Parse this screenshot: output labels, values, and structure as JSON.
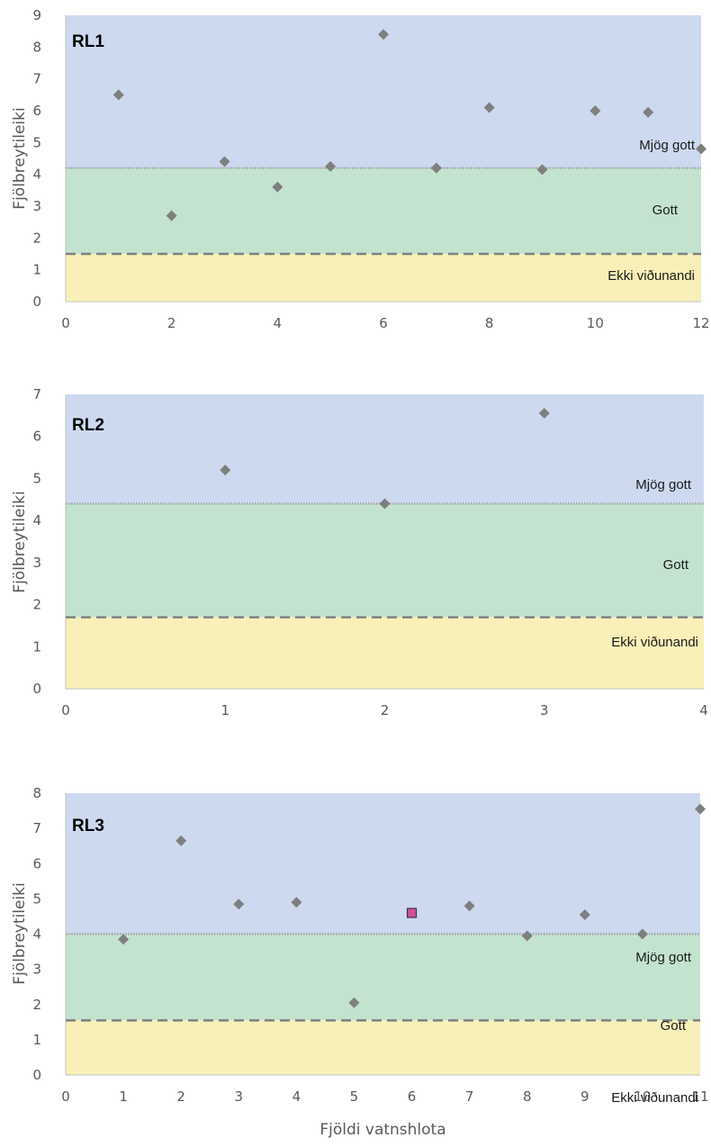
{
  "colors": {
    "band_top": "#ccd9ef",
    "band_mid": "#c3e3cf",
    "band_low": "#f8f0b8",
    "marker": "#7f7f7f",
    "marker_special": "#d2509a",
    "axis": "#bfbfbf",
    "boundary": "#808080"
  },
  "chart_data": [
    {
      "type": "scatter",
      "panel_label": "RL1",
      "ylabel": "Fjölbreytileiki",
      "xlabel": "",
      "xlim": [
        0,
        12
      ],
      "ylim": [
        0,
        9
      ],
      "x_ticks": [
        0,
        2,
        4,
        6,
        8,
        10,
        12
      ],
      "y_ticks": [
        0,
        1,
        2,
        3,
        4,
        5,
        6,
        7,
        8,
        9
      ],
      "bands": [
        {
          "label": "Mjög gott",
          "from": 4.2,
          "to": 9
        },
        {
          "label": "Gott",
          "from": 1.5,
          "to": 4.2
        },
        {
          "label": "Ekki viðunandi",
          "from": 0,
          "to": 1.5
        }
      ],
      "thresholds": [
        {
          "value": 4.2,
          "style": "dotted"
        },
        {
          "value": 1.5,
          "style": "dashed"
        }
      ],
      "series": [
        {
          "marker": "diamond",
          "points": [
            [
              1,
              6.5
            ],
            [
              2,
              2.7
            ],
            [
              3,
              4.4
            ],
            [
              4,
              3.6
            ],
            [
              5,
              4.25
            ],
            [
              6,
              8.4
            ],
            [
              7,
              4.2
            ],
            [
              8,
              6.1
            ],
            [
              9,
              4.15
            ],
            [
              10,
              6.0
            ],
            [
              11,
              5.95
            ],
            [
              12,
              4.8
            ]
          ]
        }
      ]
    },
    {
      "type": "scatter",
      "panel_label": "RL2",
      "ylabel": "Fjölbreytileiki",
      "xlabel": "",
      "xlim": [
        0,
        4
      ],
      "ylim": [
        0,
        7
      ],
      "x_ticks": [
        0,
        1,
        2,
        3,
        4
      ],
      "y_ticks": [
        0,
        1,
        2,
        3,
        4,
        5,
        6,
        7
      ],
      "bands": [
        {
          "label": "Mjög gott",
          "from": 4.4,
          "to": 7
        },
        {
          "label": "Gott",
          "from": 1.7,
          "to": 4.4
        },
        {
          "label": "Ekki viðunandi",
          "from": 0,
          "to": 1.7
        }
      ],
      "thresholds": [
        {
          "value": 4.4,
          "style": "dotted"
        },
        {
          "value": 1.7,
          "style": "dashed"
        }
      ],
      "series": [
        {
          "marker": "diamond",
          "points": [
            [
              1,
              5.2
            ],
            [
              2,
              4.4
            ],
            [
              3,
              6.55
            ]
          ]
        }
      ]
    },
    {
      "type": "scatter",
      "panel_label": "RL3",
      "ylabel": "Fjölbreytileiki",
      "xlabel": "Fjöldi vatnshlota",
      "xlim": [
        0,
        11
      ],
      "ylim": [
        0,
        8
      ],
      "x_ticks": [
        0,
        1,
        2,
        3,
        4,
        5,
        6,
        7,
        8,
        9,
        10,
        11
      ],
      "y_ticks": [
        0,
        1,
        2,
        3,
        4,
        5,
        6,
        7,
        8
      ],
      "bands": [
        {
          "label": "Mjög gott",
          "from": 4.0,
          "to": 8
        },
        {
          "label": "Gott",
          "from": 1.55,
          "to": 4.0
        },
        {
          "label": "Ekki viðunandi",
          "from": 0,
          "to": 1.55
        }
      ],
      "thresholds": [
        {
          "value": 4.0,
          "style": "dotted"
        },
        {
          "value": 1.55,
          "style": "dashed"
        }
      ],
      "series": [
        {
          "marker": "diamond",
          "points": [
            [
              1,
              3.85
            ],
            [
              2,
              6.65
            ],
            [
              3,
              4.85
            ],
            [
              4,
              4.9
            ],
            [
              5,
              2.05
            ],
            [
              7,
              4.8
            ],
            [
              8,
              3.95
            ],
            [
              9,
              4.55
            ],
            [
              10,
              4.0
            ],
            [
              11,
              7.55
            ]
          ]
        },
        {
          "marker": "square",
          "points": [
            [
              6,
              4.6
            ]
          ]
        }
      ]
    }
  ]
}
